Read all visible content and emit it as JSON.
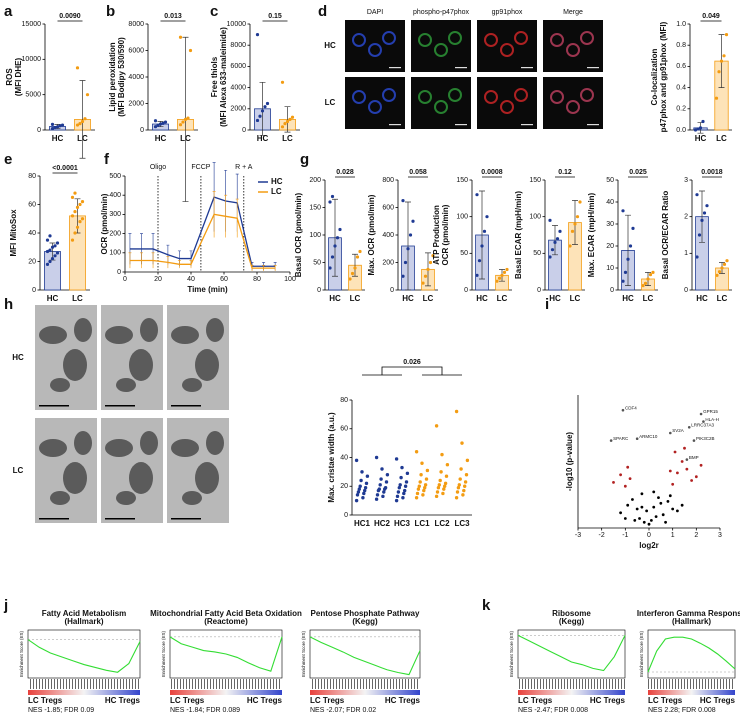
{
  "chart_data": [
    {
      "panel": "a",
      "type": "bar",
      "ylabel": [
        "ROS",
        "(MFI DHE)"
      ],
      "categories": [
        "HC",
        "LC"
      ],
      "values": [
        500,
        1500
      ],
      "errors": [
        300,
        5500
      ],
      "points": [
        [
          200,
          350,
          450,
          600,
          700,
          800
        ],
        [
          700,
          900,
          1200,
          1600,
          5000,
          8800
        ]
      ],
      "colors": [
        "#1f3a93",
        "#f39c12"
      ],
      "fills": [
        "#c9cfe9",
        "#fde3b8"
      ],
      "ylim": [
        0,
        15000
      ],
      "yticks": [
        0,
        5000,
        10000,
        15000
      ],
      "pvalue": "0.0090"
    },
    {
      "panel": "b",
      "type": "bar",
      "ylabel": [
        "Lipid peroxidation",
        "(MFI Bodipy 530/590)"
      ],
      "categories": [
        "HC",
        "LC"
      ],
      "values": [
        450,
        800
      ],
      "errors": [
        200,
        6200
      ],
      "points": [
        [
          250,
          350,
          450,
          500,
          600,
          700
        ],
        [
          400,
          600,
          800,
          900,
          6000,
          7000
        ]
      ],
      "colors": [
        "#1f3a93",
        "#f39c12"
      ],
      "fills": [
        "#c9cfe9",
        "#fde3b8"
      ],
      "ylim": [
        0,
        8000
      ],
      "yticks": [
        0,
        2000,
        4000,
        6000,
        8000
      ],
      "pvalue": "0.013"
    },
    {
      "panel": "c",
      "type": "bar",
      "ylabel": [
        "Free thiols",
        "(MFI Alexa 633-maleimide)"
      ],
      "categories": [
        "HC",
        "LC"
      ],
      "values": [
        2000,
        1000
      ],
      "errors": [
        2500,
        1200
      ],
      "points": [
        [
          900,
          1300,
          1800,
          2200,
          2500,
          9000
        ],
        [
          300,
          600,
          800,
          1000,
          1200,
          4500
        ]
      ],
      "colors": [
        "#1f3a93",
        "#f39c12"
      ],
      "fills": [
        "#c9cfe9",
        "#fde3b8"
      ],
      "ylim": [
        0,
        10000
      ],
      "yticks": [
        0,
        2000,
        4000,
        6000,
        8000,
        10000
      ],
      "pvalue": "0.15"
    },
    {
      "panel": "d",
      "type": "bar",
      "ylabel": [
        "Co-localization",
        "p47phox and gp91phox (MFI)"
      ],
      "categories": [
        "HC",
        "LC"
      ],
      "values": [
        0.02,
        0.65
      ],
      "errors": [
        0.05,
        0.25
      ],
      "points": [
        [
          0.0,
          0.01,
          0.02,
          0.08
        ],
        [
          0.3,
          0.55,
          0.65,
          0.7,
          0.9
        ]
      ],
      "colors": [
        "#1f3a93",
        "#f39c12"
      ],
      "fills": [
        "#c9cfe9",
        "#fde3b8"
      ],
      "ylim": [
        0,
        1.0
      ],
      "yticks": [
        {
          "value": 0,
          "label": "0.0"
        },
        0.2,
        0.4,
        0.6,
        0.8,
        {
          "value": 1,
          "label": "1.0"
        }
      ],
      "pvalue": "0.049"
    },
    {
      "panel": "e",
      "type": "bar",
      "ylabel": [
        "MFI MitoSox"
      ],
      "categories": [
        "HC",
        "LC"
      ],
      "values": [
        27,
        52
      ],
      "errors": [
        6,
        12
      ],
      "points": [
        [
          18,
          20,
          22,
          24,
          26,
          27,
          28,
          30,
          31,
          33,
          35,
          38
        ],
        [
          35,
          40,
          44,
          48,
          50,
          52,
          55,
          58,
          60,
          62,
          65,
          68
        ]
      ],
      "colors": [
        "#1f3a93",
        "#f39c12"
      ],
      "fills": [
        "#c9cfe9",
        "#fde3b8"
      ],
      "ylim": [
        0,
        80
      ],
      "yticks": [
        0,
        20,
        40,
        60,
        80
      ],
      "pvalue": "<0.0001"
    },
    {
      "panel": "f",
      "type": "line",
      "ylabel": "OCR (pmol/min)",
      "xlabel": "Time (min)",
      "x": [
        3,
        10,
        17,
        26,
        33,
        40,
        54,
        61,
        68,
        77,
        84,
        91
      ],
      "series": [
        {
          "name": "HC",
          "color": "#1f3a93",
          "values": [
            120,
            120,
            120,
            90,
            70,
            70,
            390,
            370,
            360,
            30,
            30,
            30
          ],
          "errors": [
            80,
            80,
            80,
            50,
            40,
            40,
            180,
            160,
            150,
            20,
            20,
            20
          ]
        },
        {
          "name": "LC",
          "color": "#f39c12",
          "values": [
            60,
            60,
            60,
            50,
            40,
            40,
            300,
            290,
            280,
            20,
            20,
            20
          ],
          "errors": [
            40,
            40,
            40,
            30,
            20,
            20,
            120,
            110,
            100,
            15,
            15,
            15
          ]
        }
      ],
      "xlim": [
        0,
        100
      ],
      "xticks": [
        0,
        20,
        40,
        60,
        80,
        100
      ],
      "ylim": [
        0,
        500
      ],
      "yticks": [
        0,
        100,
        200,
        300,
        400,
        500
      ],
      "markers": [
        {
          "label": "Oligo",
          "x": 20
        },
        {
          "label": "FCCP",
          "x": 46
        },
        {
          "label": "R + A",
          "x": 72
        }
      ],
      "legend": "upper right"
    },
    {
      "panel": "g",
      "type": "bar",
      "ylabel": [
        "Basal OCR (pmol/min)"
      ],
      "categories": [
        "HC",
        "LC"
      ],
      "values": [
        95,
        45
      ],
      "errors": [
        70,
        20
      ],
      "points": [
        [
          40,
          60,
          80,
          95,
          110,
          160,
          170
        ],
        [
          20,
          30,
          40,
          60,
          70
        ]
      ],
      "colors": [
        "#1f3a93",
        "#f39c12"
      ],
      "fills": [
        "#c9cfe9",
        "#fde3b8"
      ],
      "ylim": [
        0,
        200
      ],
      "yticks": [
        0,
        50,
        100,
        150,
        200
      ],
      "pvalue": "0.028"
    },
    {
      "type": "bar",
      "ylabel": [
        "Max. OCR (pmol/min)"
      ],
      "categories": [
        "HC",
        "LC"
      ],
      "values": [
        320,
        150
      ],
      "errors": [
        320,
        120
      ],
      "points": [
        [
          100,
          200,
          300,
          400,
          500,
          650
        ],
        [
          50,
          100,
          150,
          200,
          250
        ]
      ],
      "colors": [
        "#1f3a93",
        "#f39c12"
      ],
      "fills": [
        "#c9cfe9",
        "#fde3b8"
      ],
      "ylim": [
        0,
        800
      ],
      "yticks": [
        0,
        200,
        400,
        600,
        800
      ],
      "pvalue": "0.058"
    },
    {
      "type": "bar",
      "ylabel": [
        "ATP Production",
        "OCR (pmol/min)"
      ],
      "categories": [
        "HC",
        "LC"
      ],
      "values": [
        75,
        20
      ],
      "errors": [
        60,
        8
      ],
      "points": [
        [
          20,
          40,
          60,
          80,
          100,
          130
        ],
        [
          12,
          16,
          20,
          24,
          28
        ]
      ],
      "colors": [
        "#1f3a93",
        "#f39c12"
      ],
      "fills": [
        "#c9cfe9",
        "#fde3b8"
      ],
      "ylim": [
        0,
        150
      ],
      "yticks": [
        0,
        50,
        100,
        150
      ],
      "pvalue": "0.0008"
    },
    {
      "type": "bar",
      "ylabel": [
        "Basal ECAR (mpH/min)"
      ],
      "categories": [
        "HC",
        "LC"
      ],
      "values": [
        68,
        92
      ],
      "errors": [
        20,
        30
      ],
      "points": [
        [
          45,
          55,
          65,
          70,
          80,
          95
        ],
        [
          60,
          80,
          90,
          100,
          120
        ]
      ],
      "colors": [
        "#1f3a93",
        "#f39c12"
      ],
      "fills": [
        "#c9cfe9",
        "#fde3b8"
      ],
      "ylim": [
        0,
        150
      ],
      "yticks": [
        0,
        50,
        100,
        150
      ],
      "pvalue": "0.12"
    },
    {
      "type": "bar",
      "ylabel": [
        "Max. ECAR (mpH/min)"
      ],
      "categories": [
        "HC",
        "LC"
      ],
      "values": [
        18,
        5
      ],
      "errors": [
        16,
        3
      ],
      "points": [
        [
          4,
          8,
          14,
          20,
          28,
          36
        ],
        [
          2,
          3,
          5,
          7,
          8
        ]
      ],
      "colors": [
        "#1f3a93",
        "#f39c12"
      ],
      "fills": [
        "#c9cfe9",
        "#fde3b8"
      ],
      "ylim": [
        0,
        50
      ],
      "yticks": [
        0,
        10,
        20,
        30,
        40,
        50
      ],
      "pvalue": "0.025"
    },
    {
      "type": "bar",
      "ylabel": [
        "Basal OCR/ECAR Ratio"
      ],
      "categories": [
        "HC",
        "LC"
      ],
      "values": [
        2.0,
        0.6
      ],
      "errors": [
        0.7,
        0.15
      ],
      "points": [
        [
          0.9,
          1.5,
          1.9,
          2.1,
          2.3,
          2.6
        ],
        [
          0.4,
          0.5,
          0.6,
          0.7,
          0.8
        ]
      ],
      "colors": [
        "#1f3a93",
        "#f39c12"
      ],
      "fills": [
        "#c9cfe9",
        "#fde3b8"
      ],
      "ylim": [
        0,
        3
      ],
      "yticks": [
        0,
        1,
        2,
        3
      ],
      "pvalue": "0.0018"
    },
    {
      "panel": "h",
      "type": "strip",
      "ylabel": "Max. cristae width (a.u.)",
      "categories": [
        "HC1",
        "HC2",
        "HC3",
        "LC1",
        "LC2",
        "LC3"
      ],
      "points": [
        [
          10,
          12,
          14,
          15,
          16,
          17,
          18,
          19,
          20,
          22,
          24,
          27,
          30,
          38
        ],
        [
          11,
          13,
          14,
          16,
          17,
          18,
          18,
          19,
          21,
          23,
          25,
          28,
          32,
          40
        ],
        [
          10,
          12,
          13,
          15,
          16,
          17,
          19,
          20,
          21,
          23,
          26,
          29,
          33,
          39
        ],
        [
          12,
          14,
          15,
          17,
          18,
          19,
          20,
          21,
          23,
          25,
          28,
          31,
          36,
          44
        ],
        [
          13,
          15,
          16,
          18,
          19,
          20,
          21,
          22,
          24,
          27,
          30,
          35,
          42,
          62
        ],
        [
          12,
          14,
          16,
          17,
          19,
          20,
          21,
          23,
          25,
          28,
          32,
          38,
          50,
          72
        ]
      ],
      "colors": [
        "#1f3a93",
        "#1f3a93",
        "#1f3a93",
        "#f39c12",
        "#f39c12",
        "#f39c12"
      ],
      "ylim": [
        0,
        80
      ],
      "yticks": [
        0,
        20,
        40,
        60,
        80
      ],
      "pvalue": "0.026"
    },
    {
      "panel": "i",
      "type": "scatter",
      "ylabel": "-log10 (p-value)",
      "xlabel": "log2r",
      "series": [
        {
          "color": "#000000",
          "x": [
            -1.2,
            -0.9,
            -0.7,
            -0.5,
            -0.4,
            -0.3,
            -0.2,
            -0.1,
            0,
            0.1,
            0.2,
            0.3,
            0.4,
            0.5,
            0.6,
            0.8,
            1.0,
            1.2,
            -0.6,
            0.7,
            -0.3,
            0.2,
            0.9,
            -1.0,
            1.4
          ],
          "values": [
            0.8,
            1.2,
            1.5,
            1.0,
            0.5,
            1.8,
            0.3,
            0.9,
            0.2,
            0.4,
            1.1,
            0.6,
            1.6,
            1.3,
            0.7,
            1.4,
            1.0,
            0.9,
            0.4,
            0.3,
            1.1,
            1.9,
            1.7,
            0.5,
            1.2
          ]
        },
        {
          "color": "#b22222",
          "x": [
            -1.5,
            -1.2,
            -0.9,
            -0.8,
            1.0,
            1.2,
            1.4,
            1.6,
            1.8,
            2.0,
            1.1,
            -1.0,
            1.5,
            0.9,
            2.2
          ],
          "values": [
            2.4,
            2.8,
            3.2,
            2.6,
            2.3,
            2.9,
            3.5,
            3.1,
            2.5,
            2.7,
            4.0,
            2.2,
            4.2,
            3.0,
            3.3
          ]
        }
      ],
      "labeled_points": [
        {
          "label": "CDF4",
          "x": -1.1,
          "y": 6.2
        },
        {
          "label": "SPARC",
          "x": -1.6,
          "y": 4.6
        },
        {
          "label": "ARMC10",
          "x": -0.5,
          "y": 4.7
        },
        {
          "label": "SV2A",
          "x": 0.9,
          "y": 5.0
        },
        {
          "label": "LRRC37A3",
          "x": 1.7,
          "y": 5.3
        },
        {
          "label": "HLA-H",
          "x": 2.3,
          "y": 5.6
        },
        {
          "label": "GPR15",
          "x": 2.2,
          "y": 6.0
        },
        {
          "label": "PIK3C2B",
          "x": 1.9,
          "y": 4.6
        },
        {
          "label": "BMP",
          "x": 1.6,
          "y": 3.6
        }
      ],
      "xlim": [
        -3,
        3
      ],
      "xticks": [
        -3,
        -2,
        -1,
        0,
        1,
        2,
        3
      ],
      "ylim": [
        0,
        7
      ]
    },
    {
      "panel": "j",
      "type": "gsea",
      "title": [
        "Fatty Acid Metabolism",
        "(Hallmark)"
      ],
      "ylabel": "Enrichment Score (ES)",
      "x": [
        0,
        10,
        20,
        30,
        40,
        50,
        60,
        70,
        80,
        90,
        100
      ],
      "values": [
        0,
        -0.08,
        -0.14,
        -0.18,
        -0.22,
        -0.26,
        -0.29,
        -0.32,
        -0.34,
        -0.25,
        -0.02
      ],
      "xlim": [
        0,
        100
      ],
      "ylim": [
        -0.4,
        0.1
      ],
      "color": "#33dd33",
      "left_label": "LC Tregs",
      "right_label": "HC Tregs",
      "stats": "NES -1.85; FDR 0.09"
    },
    {
      "type": "gsea",
      "title": [
        "Mitochondrial Fatty Acid Beta Oxidation",
        "(Reactome)"
      ],
      "ylabel": "Enrichment Score (ES)",
      "x": [
        0,
        10,
        20,
        30,
        40,
        50,
        60,
        70,
        80,
        90,
        100
      ],
      "values": [
        0,
        -0.1,
        -0.15,
        -0.2,
        -0.22,
        -0.25,
        -0.3,
        -0.38,
        -0.45,
        -0.5,
        0
      ],
      "xlim": [
        0,
        100
      ],
      "ylim": [
        -0.6,
        0.1
      ],
      "color": "#33dd33",
      "left_label": "LC Tregs",
      "right_label": "HC Tregs",
      "stats": "NES -1.84; FDR 0.089"
    },
    {
      "type": "gsea",
      "title": [
        "Pentose Phosphate Pathway",
        "(Kegg)"
      ],
      "ylabel": "Enrichment Score (ES)",
      "x": [
        0,
        10,
        20,
        30,
        40,
        50,
        60,
        70,
        80,
        90,
        100
      ],
      "values": [
        0,
        -0.08,
        -0.15,
        -0.22,
        -0.3,
        -0.36,
        -0.42,
        -0.48,
        -0.52,
        -0.55,
        -0.2
      ],
      "xlim": [
        0,
        100
      ],
      "ylim": [
        -0.6,
        0.1
      ],
      "color": "#33dd33",
      "left_label": "LC Tregs",
      "right_label": "HC Tregs",
      "stats": "NES -2.07; FDR 0.02"
    },
    {
      "panel": "k",
      "type": "gsea",
      "title": [
        "Ribosome",
        "(Kegg)"
      ],
      "ylabel": "Enrichment Score (ES)",
      "x": [
        0,
        10,
        20,
        30,
        40,
        50,
        60,
        70,
        80,
        90,
        100
      ],
      "values": [
        0,
        -0.1,
        -0.2,
        -0.3,
        -0.4,
        -0.5,
        -0.55,
        -0.62,
        -0.66,
        -0.4,
        0
      ],
      "xlim": [
        0,
        100
      ],
      "ylim": [
        -0.8,
        0.1
      ],
      "color": "#33dd33",
      "left_label": "LC Tregs",
      "right_label": "HC Tregs",
      "stats": "NES -2.47; FDR 0.008"
    },
    {
      "type": "gsea",
      "title": [
        "Interferon Gamma Response",
        "(Hallmark)"
      ],
      "ylabel": "Enrichment Score (ES)",
      "x": [
        0,
        10,
        20,
        30,
        40,
        50,
        60,
        70,
        80,
        90,
        100
      ],
      "values": [
        0,
        0.35,
        0.55,
        0.58,
        0.58,
        0.55,
        0.48,
        0.4,
        0.3,
        0.18,
        0.05
      ],
      "xlim": [
        0,
        100
      ],
      "ylim": [
        -0.1,
        0.7
      ],
      "color": "#33dd33",
      "left_label": "LC Tregs",
      "right_label": "HC Tregs",
      "stats": "NES 2.28; FDR 0.008"
    }
  ],
  "micrographs": {
    "d": {
      "columns": [
        "DAPI",
        "phospho-p47phox",
        "gp91phox",
        "Merge"
      ],
      "column_colors": [
        "#2a4bd7",
        "#2e9e3a",
        "#d62728",
        "#111111"
      ],
      "rows": [
        "HC",
        "LC"
      ]
    },
    "h": {
      "rows": [
        "HC",
        "LC"
      ]
    }
  }
}
